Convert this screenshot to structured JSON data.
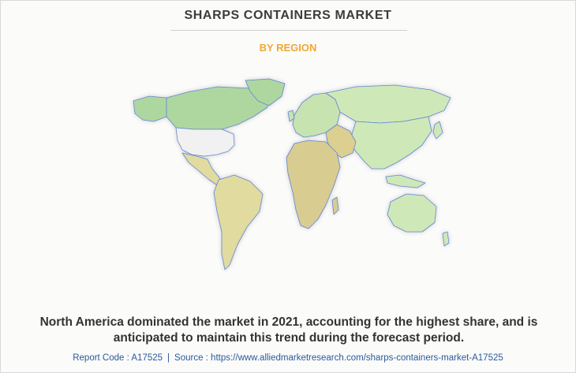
{
  "header": {
    "title": "SHARPS CONTAINERS MARKET",
    "subtitle": "BY REGION"
  },
  "map": {
    "colors": {
      "north_america": "#aed7a0",
      "usa": "#f1f1f1",
      "latin_america": "#e1dba0",
      "europe": "#c7e3b0",
      "asia": "#cfe8b8",
      "africa": "#d8cc90",
      "middle_east": "#dccf8f",
      "oceania": "#cfe8b8",
      "border": "#5f86d6"
    }
  },
  "caption": {
    "text": "North America dominated the market in 2021, accounting for the highest share, and is anticipated to maintain this trend during the forecast period."
  },
  "footer": {
    "report_code": "Report Code : A17525",
    "separator": "|",
    "source": "Source : https://www.alliedmarketresearch.com/sharps-containers-market-A17525"
  }
}
